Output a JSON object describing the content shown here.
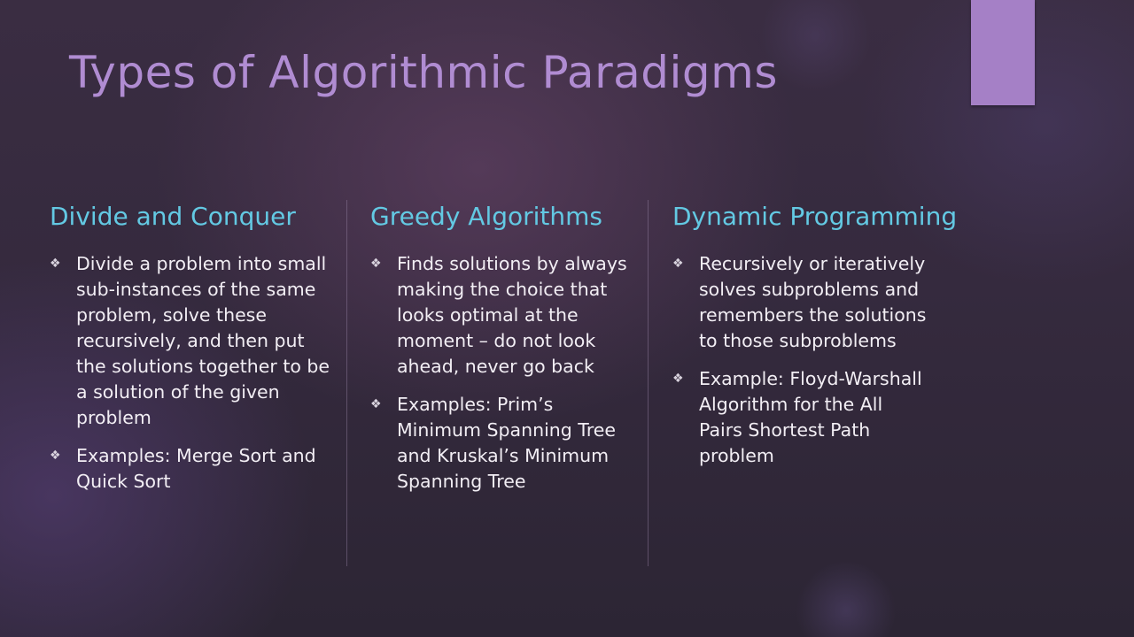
{
  "slide": {
    "title": "Types of Algorithmic Paradigms",
    "accent_color": "#a580c6",
    "title_color": "#b08cd2",
    "heading_color": "#63c9e3",
    "bullet_icon": "diamond-bullet-icon"
  },
  "columns": [
    {
      "heading": "Divide and Conquer",
      "bullets": [
        "Divide a problem into small sub-instances of the same problem, solve these recursively, and then put the solutions together to be a solution of the given problem",
        "Examples: Merge Sort and Quick Sort"
      ]
    },
    {
      "heading": "Greedy Algorithms",
      "bullets": [
        "Finds solutions by always making the choice that looks optimal at the moment – do not look ahead, never go back",
        "Examples: Prim’s Minimum Spanning Tree and Kruskal’s Minimum Spanning Tree"
      ]
    },
    {
      "heading": "Dynamic Programming",
      "bullets": [
        "Recursively or iteratively solves subproblems and remembers the solutions to those subproblems",
        "Example: Floyd-Warshall Algorithm for the All Pairs Shortest Path problem"
      ]
    }
  ]
}
